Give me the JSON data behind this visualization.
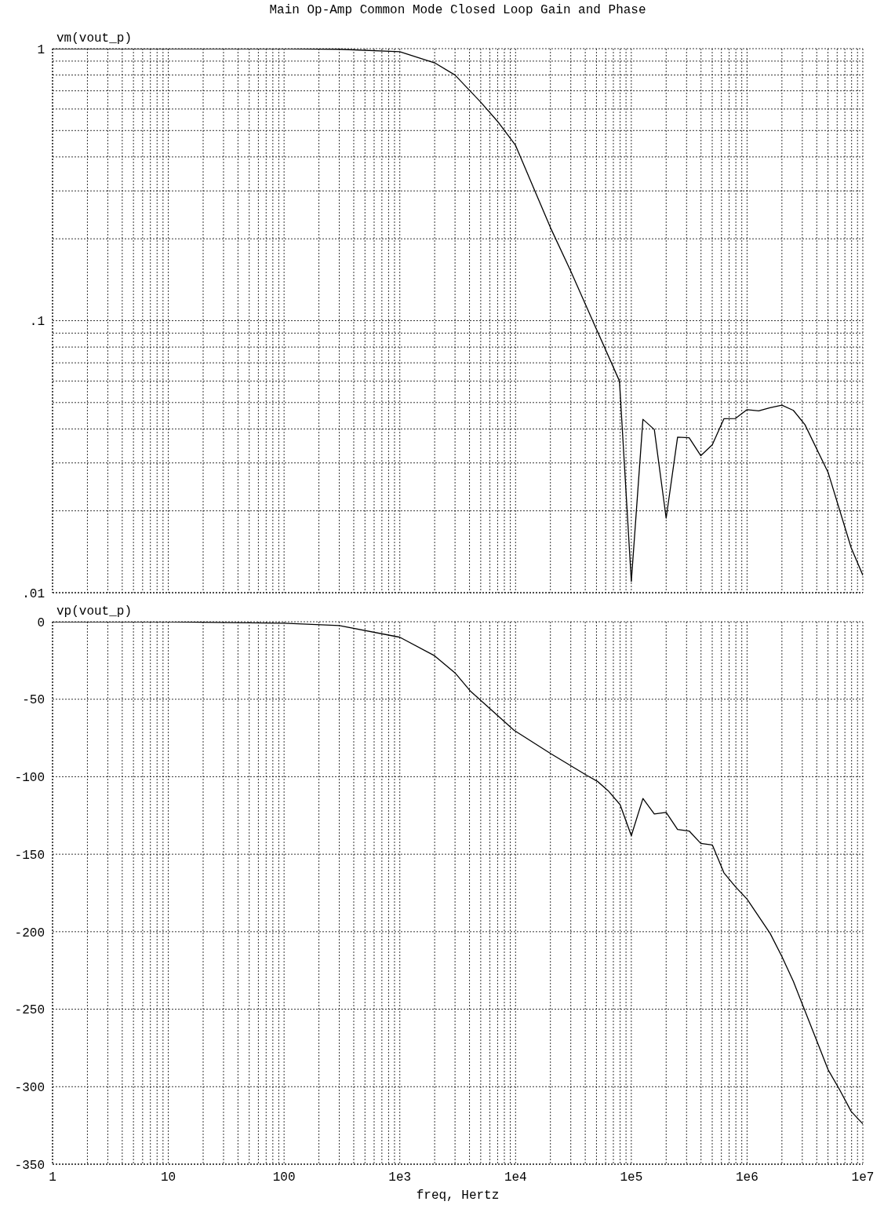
{
  "chart_data": [
    {
      "type": "line",
      "title": "Main Op-Amp Common Mode Closed Loop Gain and Phase",
      "ylabel": "vm(vout_p)",
      "log": "xy",
      "grid": true,
      "tick_labels": "y",
      "marker": "none",
      "line_style": "solid",
      "color": "#000000",
      "x": [
        1,
        10,
        100,
        300,
        1000,
        2000,
        3000,
        5000,
        7000,
        10000,
        20000,
        30000,
        50000,
        79000,
        100000,
        126000,
        158000,
        200000,
        251000,
        316000,
        398000,
        501000,
        631000,
        794000,
        1000000,
        1260000,
        1580000,
        2000000,
        2510000,
        3160000,
        5010000,
        7940000,
        10000000
      ],
      "values": [
        1,
        1,
        1,
        0.995,
        0.974,
        0.887,
        0.8,
        0.636,
        0.54,
        0.441,
        0.22,
        0.152,
        0.093,
        0.06,
        0.011,
        0.0434,
        0.0398,
        0.0188,
        0.0373,
        0.0371,
        0.0319,
        0.035,
        0.0436,
        0.0437,
        0.0471,
        0.0466,
        0.0479,
        0.0489,
        0.0468,
        0.0415,
        0.0277,
        0.0146,
        0.0116
      ],
      "xlim": [
        1,
        10000000
      ],
      "xticks": [
        1,
        {
          "value": 2,
          "label": null
        },
        {
          "value": 3,
          "label": null
        },
        {
          "value": 4,
          "label": null
        },
        {
          "value": 5,
          "label": null
        },
        {
          "value": 6,
          "label": null
        },
        {
          "value": 7,
          "label": null
        },
        {
          "value": 8,
          "label": null
        },
        {
          "value": 9,
          "label": null
        },
        10,
        {
          "value": 20,
          "label": null
        },
        {
          "value": 30,
          "label": null
        },
        {
          "value": 40,
          "label": null
        },
        {
          "value": 50,
          "label": null
        },
        {
          "value": 60,
          "label": null
        },
        {
          "value": 70,
          "label": null
        },
        {
          "value": 80,
          "label": null
        },
        {
          "value": 90,
          "label": null
        },
        100,
        {
          "value": 200,
          "label": null
        },
        {
          "value": 300,
          "label": null
        },
        {
          "value": 400,
          "label": null
        },
        {
          "value": 500,
          "label": null
        },
        {
          "value": 600,
          "label": null
        },
        {
          "value": 700,
          "label": null
        },
        {
          "value": 800,
          "label": null
        },
        {
          "value": 900,
          "label": null
        },
        1000,
        {
          "value": 2000,
          "label": null
        },
        {
          "value": 3000,
          "label": null
        },
        {
          "value": 4000,
          "label": null
        },
        {
          "value": 5000,
          "label": null
        },
        {
          "value": 6000,
          "label": null
        },
        {
          "value": 7000,
          "label": null
        },
        {
          "value": 8000,
          "label": null
        },
        {
          "value": 9000,
          "label": null
        },
        10000,
        {
          "value": 20000,
          "label": null
        },
        {
          "value": 30000,
          "label": null
        },
        {
          "value": 40000,
          "label": null
        },
        {
          "value": 50000,
          "label": null
        },
        {
          "value": 60000,
          "label": null
        },
        {
          "value": 70000,
          "label": null
        },
        {
          "value": 80000,
          "label": null
        },
        {
          "value": 90000,
          "label": null
        },
        100000,
        {
          "value": 200000,
          "label": null
        },
        {
          "value": 300000,
          "label": null
        },
        {
          "value": 400000,
          "label": null
        },
        {
          "value": 500000,
          "label": null
        },
        {
          "value": 600000,
          "label": null
        },
        {
          "value": 700000,
          "label": null
        },
        {
          "value": 800000,
          "label": null
        },
        {
          "value": 900000,
          "label": null
        },
        1000000,
        {
          "value": 2000000,
          "label": null
        },
        {
          "value": 3000000,
          "label": null
        },
        {
          "value": 4000000,
          "label": null
        },
        {
          "value": 5000000,
          "label": null
        },
        {
          "value": 6000000,
          "label": null
        },
        {
          "value": 7000000,
          "label": null
        },
        {
          "value": 8000000,
          "label": null
        },
        {
          "value": 9000000,
          "label": null
        },
        10000000
      ],
      "ylim": [
        0.01,
        1
      ],
      "yticks": [
        {
          "value": 0.01,
          "label": ".01"
        },
        {
          "value": 0.02,
          "label": null
        },
        {
          "value": 0.03,
          "label": null
        },
        {
          "value": 0.04,
          "label": null
        },
        {
          "value": 0.05,
          "label": null
        },
        {
          "value": 0.06,
          "label": null
        },
        {
          "value": 0.07,
          "label": null
        },
        {
          "value": 0.08,
          "label": null
        },
        {
          "value": 0.09,
          "label": null
        },
        {
          "value": 0.1,
          "label": ".1"
        },
        {
          "value": 0.2,
          "label": null
        },
        {
          "value": 0.3,
          "label": null
        },
        {
          "value": 0.4,
          "label": null
        },
        {
          "value": 0.5,
          "label": null
        },
        {
          "value": 0.6,
          "label": null
        },
        {
          "value": 0.7,
          "label": null
        },
        {
          "value": 0.8,
          "label": null
        },
        {
          "value": 0.9,
          "label": null
        },
        1
      ]
    },
    {
      "type": "line",
      "ylabel": "vp(vout_p)",
      "xlabel": "freq, Hertz",
      "log": "x",
      "grid": true,
      "marker": "none",
      "line_style": "solid",
      "color": "#000000",
      "x": [
        1,
        10,
        100,
        300,
        1000,
        2000,
        3000,
        4100,
        9700,
        20000,
        41000,
        51000,
        63000,
        80000,
        100000,
        126000,
        158000,
        200000,
        251000,
        316000,
        398000,
        501000,
        631000,
        794000,
        1000000,
        1580000,
        2000000,
        2510000,
        3160000,
        3980000,
        5010000,
        6310000,
        7940000,
        10000000
      ],
      "values": [
        0,
        -0.1,
        -1,
        -2.5,
        -10,
        -22,
        -33,
        -45,
        -70,
        -85,
        -99,
        -103,
        -109,
        -118,
        -138,
        -114,
        -124,
        -123,
        -134,
        -135,
        -143,
        -144,
        -162,
        -171,
        -179,
        -201,
        -216,
        -232,
        -251,
        -270,
        -289,
        -302,
        -316,
        -324
      ],
      "xlim": [
        1,
        10000000
      ],
      "xticks": [
        1,
        {
          "value": 2,
          "label": null
        },
        {
          "value": 3,
          "label": null
        },
        {
          "value": 4,
          "label": null
        },
        {
          "value": 5,
          "label": null
        },
        {
          "value": 6,
          "label": null
        },
        {
          "value": 7,
          "label": null
        },
        {
          "value": 8,
          "label": null
        },
        {
          "value": 9,
          "label": null
        },
        10,
        {
          "value": 20,
          "label": null
        },
        {
          "value": 30,
          "label": null
        },
        {
          "value": 40,
          "label": null
        },
        {
          "value": 50,
          "label": null
        },
        {
          "value": 60,
          "label": null
        },
        {
          "value": 70,
          "label": null
        },
        {
          "value": 80,
          "label": null
        },
        {
          "value": 90,
          "label": null
        },
        100,
        {
          "value": 200,
          "label": null
        },
        {
          "value": 300,
          "label": null
        },
        {
          "value": 400,
          "label": null
        },
        {
          "value": 500,
          "label": null
        },
        {
          "value": 600,
          "label": null
        },
        {
          "value": 700,
          "label": null
        },
        {
          "value": 800,
          "label": null
        },
        {
          "value": 900,
          "label": null
        },
        {
          "value": 1000,
          "label": "1e3"
        },
        {
          "value": 2000,
          "label": null
        },
        {
          "value": 3000,
          "label": null
        },
        {
          "value": 4000,
          "label": null
        },
        {
          "value": 5000,
          "label": null
        },
        {
          "value": 6000,
          "label": null
        },
        {
          "value": 7000,
          "label": null
        },
        {
          "value": 8000,
          "label": null
        },
        {
          "value": 9000,
          "label": null
        },
        {
          "value": 10000,
          "label": "1e4"
        },
        {
          "value": 20000,
          "label": null
        },
        {
          "value": 30000,
          "label": null
        },
        {
          "value": 40000,
          "label": null
        },
        {
          "value": 50000,
          "label": null
        },
        {
          "value": 60000,
          "label": null
        },
        {
          "value": 70000,
          "label": null
        },
        {
          "value": 80000,
          "label": null
        },
        {
          "value": 90000,
          "label": null
        },
        {
          "value": 100000,
          "label": "1e5"
        },
        {
          "value": 200000,
          "label": null
        },
        {
          "value": 300000,
          "label": null
        },
        {
          "value": 400000,
          "label": null
        },
        {
          "value": 500000,
          "label": null
        },
        {
          "value": 600000,
          "label": null
        },
        {
          "value": 700000,
          "label": null
        },
        {
          "value": 800000,
          "label": null
        },
        {
          "value": 900000,
          "label": null
        },
        {
          "value": 1000000,
          "label": "1e6"
        },
        {
          "value": 2000000,
          "label": null
        },
        {
          "value": 3000000,
          "label": null
        },
        {
          "value": 4000000,
          "label": null
        },
        {
          "value": 5000000,
          "label": null
        },
        {
          "value": 6000000,
          "label": null
        },
        {
          "value": 7000000,
          "label": null
        },
        {
          "value": 8000000,
          "label": null
        },
        {
          "value": 9000000,
          "label": null
        },
        {
          "value": 10000000,
          "label": "1e7"
        }
      ],
      "ylim": [
        -350,
        0
      ],
      "yticks": [
        -350,
        -300,
        -250,
        -200,
        -150,
        -100,
        -50,
        0
      ]
    }
  ]
}
